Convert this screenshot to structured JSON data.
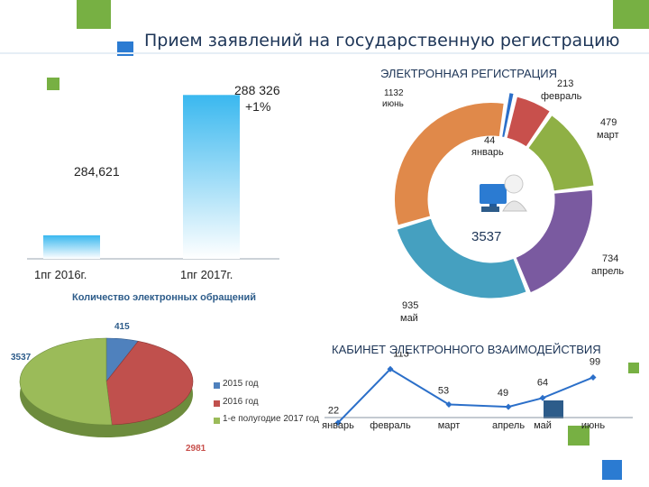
{
  "page": {
    "title": "Прием заявлений на государственную регистрацию"
  },
  "colors": {
    "green": "#77b043",
    "blue": "#2b7bd2",
    "lightblue": "#7ec8f0",
    "navy": "#2d5c8a",
    "orange": "#e0894a",
    "red": "#c8504c",
    "purple": "#7a5aa0",
    "teal": "#45a0c0",
    "olive": "#8fb045"
  },
  "chart_data": [
    {
      "type": "bar",
      "categories": [
        "1пг 2016г.",
        "1пг 2017г."
      ],
      "values": [
        284621,
        288326
      ],
      "data_labels": [
        "284,621",
        "288 326"
      ],
      "annotation": "+1%"
    },
    {
      "type": "pie",
      "title": "ЭЛЕКТРОННАЯ РЕГИСТРАЦИЯ",
      "total_label": "3537",
      "categories": [
        "январь",
        "февраль",
        "март",
        "апрель",
        "май",
        "июнь"
      ],
      "values": [
        44,
        213,
        479,
        734,
        935,
        1132
      ]
    },
    {
      "type": "pie",
      "title": "Количество электронных обращений",
      "categories": [
        "2015 год",
        "2016 год",
        "1-е полугодие 2017 год"
      ],
      "values": [
        415,
        2981,
        3537
      ]
    },
    {
      "type": "line",
      "title": "КАБИНЕТ ЭЛЕКТРОННОГО ВЗАИМОДЕЙСТВИЯ",
      "categories": [
        "январь",
        "февраль",
        "март",
        "апрель",
        "май",
        "июнь"
      ],
      "values": [
        22,
        113,
        53,
        49,
        64,
        99
      ]
    }
  ]
}
